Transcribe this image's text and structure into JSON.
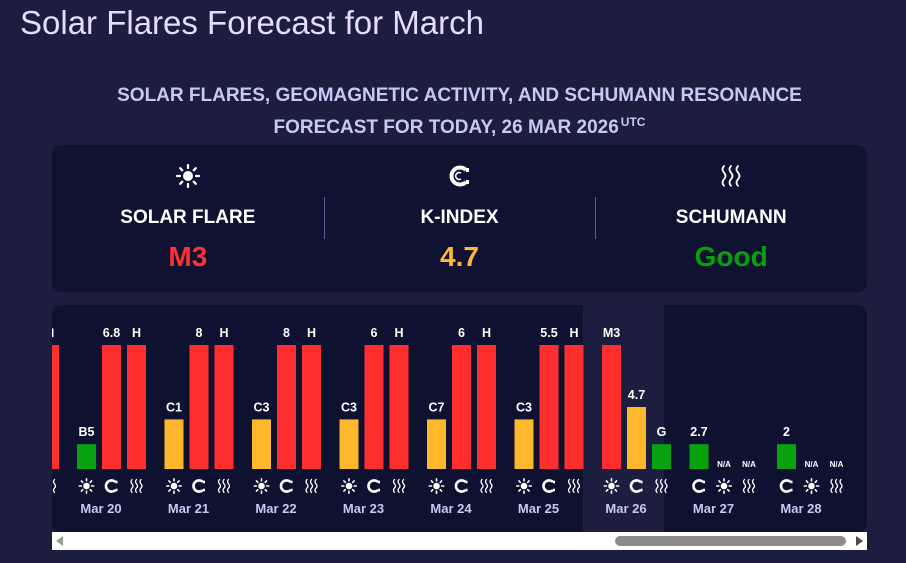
{
  "page": {
    "title": "Solar Flares Forecast for March",
    "subtitle_line1": "SOLAR FLARES, GEOMAGNETIC ACTIVITY, AND SCHUMANN RESONANCE",
    "subtitle_line2": "FORECAST FOR TODAY, 26 MAR 2026",
    "subtitle_tz": "UTC"
  },
  "summary": {
    "solar_flare": {
      "label": "SOLAR FLARE",
      "value": "M3",
      "color": "#ff3131",
      "icon": "sun-icon"
    },
    "k_index": {
      "label": "K-INDEX",
      "value": "4.7",
      "color": "#ffb931",
      "icon": "magnet-icon"
    },
    "schumann": {
      "label": "SCHUMANN",
      "value": "Good",
      "color": "#07a00c",
      "icon": "waves-icon"
    }
  },
  "colors": {
    "red": "#ff2e2e",
    "amber": "#ffb72b",
    "green": "#08a20f",
    "today_bg": "#1d1e3f",
    "chart_bg": "#0f1130"
  },
  "chart_data": {
    "type": "bar",
    "categories": [
      "Mar 20",
      "Mar 21",
      "Mar 22",
      "Mar 23",
      "Mar 24",
      "Mar 25",
      "Mar 26",
      "Mar 27",
      "Mar 28"
    ],
    "series": [
      {
        "icon": "sun-icon",
        "labels": [
          "B5",
          "C1",
          "C3",
          "C3",
          "C7",
          "C3",
          "M3",
          "N/A",
          "N/A"
        ],
        "level": [
          2,
          4,
          4,
          4,
          4,
          4,
          10,
          null,
          null
        ],
        "colors": [
          "green",
          "amber",
          "amber",
          "amber",
          "amber",
          "amber",
          "red",
          null,
          null
        ]
      },
      {
        "icon": "magnet-icon",
        "labels": [
          "6.8",
          "8",
          "8",
          "6",
          "6",
          "5.5",
          "4.7",
          "2.7",
          "2"
        ],
        "level": [
          10,
          10,
          10,
          10,
          10,
          10,
          5,
          2,
          2
        ],
        "colors": [
          "red",
          "red",
          "red",
          "red",
          "red",
          "red",
          "amber",
          "green",
          "green"
        ]
      },
      {
        "icon": "waves-icon",
        "labels": [
          "H",
          "H",
          "H",
          "H",
          "H",
          "H",
          "G",
          "N/A",
          "N/A"
        ],
        "level": [
          10,
          10,
          10,
          10,
          10,
          10,
          2,
          null,
          null
        ],
        "colors": [
          "red",
          "red",
          "red",
          "red",
          "red",
          "red",
          "green",
          null,
          null
        ]
      }
    ],
    "partial_left": {
      "label": "H",
      "icon": "waves-icon",
      "color": "red"
    },
    "today_index": 6,
    "ylim": [
      0,
      10
    ]
  }
}
